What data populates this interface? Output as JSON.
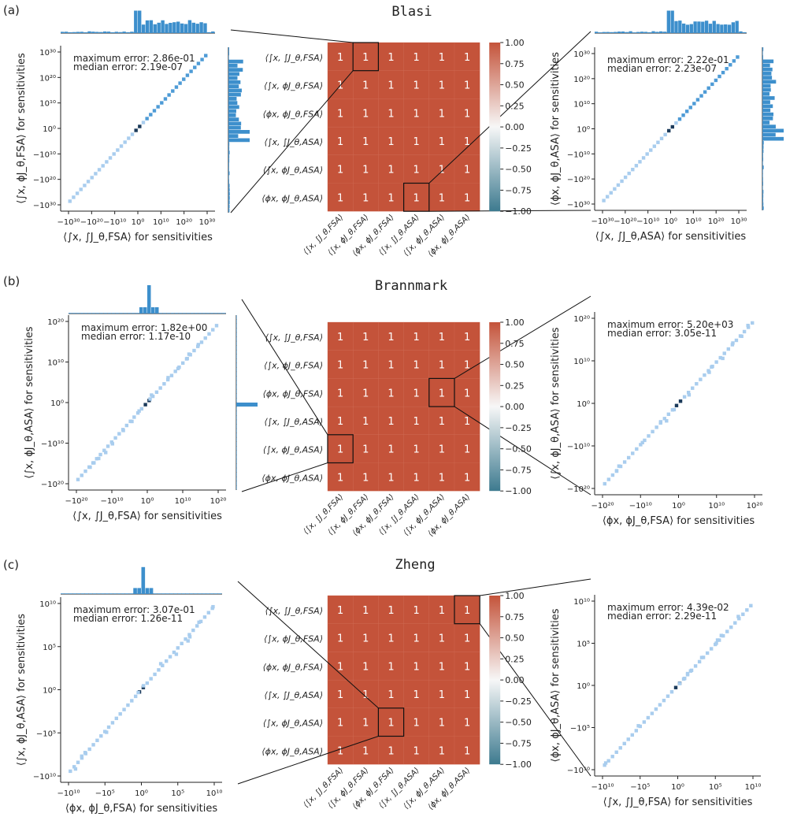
{
  "colors": {
    "heatmap_cell": "#c4533a",
    "scatter_light": "#a9cdee",
    "scatter_mid": "#4e9bd6",
    "scatter_dark": "#1b3a5a",
    "hist_bar": "#3d8fcc",
    "colorbar_low": "#3d7a8f",
    "colorbar_mid": "#f7f7f7",
    "colorbar_high": "#c4533a"
  },
  "panels": [
    {
      "label": "(a)",
      "title": "Blasi",
      "left": {
        "xlabel": "⟨∫x, ∫J_θ,FSA⟩ for sensitivities",
        "ylabel": "⟨∫x, ϕJ_θ,FSA⟩ for sensitivities",
        "xticks": [
          "−10³⁰",
          "−10²⁰",
          "−10¹⁰",
          "10⁰",
          "10¹⁰",
          "10²⁰",
          "10³⁰"
        ],
        "yticks": [
          "10³⁰",
          "10²⁰",
          "10¹⁰",
          "10⁰",
          "−10¹⁰",
          "−10²⁰",
          "−10³⁰"
        ],
        "max_error": "maximum error: 2.86e-01",
        "median_error": "median error: 2.19e-07"
      },
      "right": {
        "xlabel": "⟨∫x, ∫J_θ,ASA⟩ for sensitivities",
        "ylabel": "⟨ϕx, ϕJ_θ,ASA⟩ for sensitivities",
        "xticks": [
          "−10³⁰",
          "−10²⁰",
          "−10¹⁰",
          "10⁰",
          "10¹⁰",
          "10²⁰",
          "10³⁰"
        ],
        "yticks": [
          "10³⁰",
          "10²⁰",
          "10¹⁰",
          "10⁰",
          "−10¹⁰",
          "−10²⁰",
          "−10³⁰"
        ],
        "max_error": "maximum error: 2.22e-01",
        "median_error": "median error: 2.23e-07"
      }
    },
    {
      "label": "(b)",
      "title": "Brannmark",
      "left": {
        "xlabel": "⟨∫x, ∫J_θ,FSA⟩ for sensitivities",
        "ylabel": "⟨∫x, ϕJ_θ,ASA⟩ for sensitivities",
        "xticks": [
          "−10²⁰",
          "−10¹⁰",
          "10⁰",
          "10¹⁰",
          "10²⁰"
        ],
        "yticks": [
          "10²⁰",
          "10¹⁰",
          "10⁰",
          "−10¹⁰",
          "−10²⁰"
        ],
        "max_error": "maximum error: 1.82e+00",
        "median_error": "median error: 1.17e-10"
      },
      "right": {
        "xlabel": "⟨ϕx, ϕJ_θ,FSA⟩ for sensitivities",
        "ylabel": "⟨∫x, ϕJ_θ,ASA⟩ for sensitivities",
        "xticks": [
          "−10²⁰",
          "−10¹⁰",
          "10⁰",
          "10¹⁰",
          "10²⁰"
        ],
        "yticks": [
          "10²⁰",
          "10¹⁰",
          "10⁰",
          "−10¹⁰",
          "−10²⁰"
        ],
        "max_error": "maximum error: 5.20e+03",
        "median_error": "median error: 3.05e-11"
      }
    },
    {
      "label": "(c)",
      "title": "Zheng",
      "left": {
        "xlabel": "⟨ϕx, ϕJ_θ,FSA⟩ for sensitivities",
        "ylabel": "⟨∫x, ϕJ_θ,ASA⟩ for sensitivities",
        "xticks": [
          "−10¹⁰",
          "−10⁵",
          "10⁰",
          "10⁵",
          "10¹⁰"
        ],
        "yticks": [
          "10¹⁰",
          "10⁵",
          "10⁰",
          "−10⁵",
          "−10¹⁰"
        ],
        "max_error": "maximum error: 3.07e-01",
        "median_error": "median error: 1.26e-11"
      },
      "right": {
        "xlabel": "⟨∫x, ∫J_θ,FSA⟩ for sensitivities",
        "ylabel": "⟨ϕx, ϕJ_θ,ASA⟩ for sensitivities",
        "xticks": [
          "−10¹⁰",
          "−10⁵",
          "10⁰",
          "10⁵",
          "10¹⁰"
        ],
        "yticks": [
          "10¹⁰",
          "10⁵",
          "10⁰",
          "−10⁵",
          "−10¹⁰"
        ],
        "max_error": "maximum error: 4.39e-02",
        "median_error": "median error: 2.29e-11"
      }
    }
  ],
  "heatmap_labels": [
    "⟨∫x, ∫J_θ,FSA⟩",
    "⟨∫x, ϕJ_θ,FSA⟩",
    "⟨ϕx, ϕJ_θ,FSA⟩",
    "⟨∫x, ∫J_θ,ASA⟩",
    "⟨∫x, ϕJ_θ,ASA⟩",
    "⟨ϕx, ϕJ_θ,ASA⟩"
  ],
  "colorbar_ticks": [
    "1.00",
    "0.75",
    "0.50",
    "0.25",
    "0.00",
    "−0.25",
    "−0.50",
    "−0.75",
    "−1.00"
  ],
  "chart_data": [
    {
      "type": "heatmap",
      "title": "Blasi",
      "rows": [
        "⟨∫x, ∫J_θ,FSA⟩",
        "⟨∫x, ϕJ_θ,FSA⟩",
        "⟨ϕx, ϕJ_θ,FSA⟩",
        "⟨∫x, ∫J_θ,ASA⟩",
        "⟨∫x, ϕJ_θ,ASA⟩",
        "⟨ϕx, ϕJ_θ,ASA⟩"
      ],
      "columns": [
        "⟨∫x, ∫J_θ,FSA⟩",
        "⟨∫x, ϕJ_θ,FSA⟩",
        "⟨ϕx, ϕJ_θ,FSA⟩",
        "⟨∫x, ∫J_θ,ASA⟩",
        "⟨∫x, ϕJ_θ,ASA⟩",
        "⟨ϕx, ϕJ_θ,ASA⟩"
      ],
      "values": [
        [
          1,
          1,
          1,
          1,
          1,
          1
        ],
        [
          1,
          1,
          1,
          1,
          1,
          1
        ],
        [
          1,
          1,
          1,
          1,
          1,
          1
        ],
        [
          1,
          1,
          1,
          1,
          1,
          1
        ],
        [
          1,
          1,
          1,
          1,
          1,
          1
        ],
        [
          1,
          1,
          1,
          1,
          1,
          1
        ]
      ],
      "highlighted_cells": [
        [
          0,
          1
        ],
        [
          5,
          3
        ]
      ],
      "colorbar_range": [
        -1,
        1
      ]
    },
    {
      "type": "heatmap",
      "title": "Brannmark",
      "rows": [
        "⟨∫x, ∫J_θ,FSA⟩",
        "⟨∫x, ϕJ_θ,FSA⟩",
        "⟨ϕx, ϕJ_θ,FSA⟩",
        "⟨∫x, ∫J_θ,ASA⟩",
        "⟨∫x, ϕJ_θ,ASA⟩",
        "⟨ϕx, ϕJ_θ,ASA⟩"
      ],
      "columns": [
        "⟨∫x, ∫J_θ,FSA⟩",
        "⟨∫x, ϕJ_θ,FSA⟩",
        "⟨ϕx, ϕJ_θ,FSA⟩",
        "⟨∫x, ∫J_θ,ASA⟩",
        "⟨∫x, ϕJ_θ,ASA⟩",
        "⟨ϕx, ϕJ_θ,ASA⟩"
      ],
      "values": [
        [
          1,
          1,
          1,
          1,
          1,
          1
        ],
        [
          1,
          1,
          1,
          1,
          1,
          1
        ],
        [
          1,
          1,
          1,
          1,
          1,
          1
        ],
        [
          1,
          1,
          1,
          1,
          1,
          1
        ],
        [
          1,
          1,
          1,
          1,
          1,
          1
        ],
        [
          1,
          1,
          1,
          1,
          1,
          1
        ]
      ],
      "highlighted_cells": [
        [
          4,
          0
        ],
        [
          2,
          4
        ]
      ],
      "colorbar_range": [
        -1,
        1
      ]
    },
    {
      "type": "heatmap",
      "title": "Zheng",
      "rows": [
        "⟨∫x, ∫J_θ,FSA⟩",
        "⟨∫x, ϕJ_θ,FSA⟩",
        "⟨ϕx, ϕJ_θ,FSA⟩",
        "⟨∫x, ∫J_θ,ASA⟩",
        "⟨∫x, ϕJ_θ,ASA⟩",
        "⟨ϕx, ϕJ_θ,ASA⟩"
      ],
      "columns": [
        "⟨∫x, ∫J_θ,FSA⟩",
        "⟨∫x, ϕJ_θ,FSA⟩",
        "⟨ϕx, ϕJ_θ,FSA⟩",
        "⟨∫x, ∫J_θ,ASA⟩",
        "⟨∫x, ϕJ_θ,ASA⟩",
        "⟨ϕx, ϕJ_θ,ASA⟩"
      ],
      "values": [
        [
          1,
          1,
          1,
          1,
          1,
          1
        ],
        [
          1,
          1,
          1,
          1,
          1,
          1
        ],
        [
          1,
          1,
          1,
          1,
          1,
          1
        ],
        [
          1,
          1,
          1,
          1,
          1,
          1
        ],
        [
          1,
          1,
          1,
          1,
          1,
          1
        ],
        [
          1,
          1,
          1,
          1,
          1,
          1
        ]
      ],
      "highlighted_cells": [
        [
          4,
          2
        ],
        [
          0,
          5
        ]
      ],
      "colorbar_range": [
        -1,
        1
      ]
    },
    {
      "type": "scatter",
      "panel": "(a) left",
      "xlabel": "⟨∫x, ∫J_θ,FSA⟩ for sensitivities",
      "ylabel": "⟨∫x, ϕJ_θ,FSA⟩ for sensitivities",
      "scale": "symlog",
      "xlim": [
        -1e+30,
        1e+30
      ],
      "ylim": [
        -1e+30,
        1e+30
      ],
      "annotation": [
        "maximum error: 2.86e-01",
        "median error: 2.19e-07"
      ]
    },
    {
      "type": "scatter",
      "panel": "(a) right",
      "xlabel": "⟨∫x, ∫J_θ,ASA⟩ for sensitivities",
      "ylabel": "⟨ϕx, ϕJ_θ,ASA⟩ for sensitivities",
      "scale": "symlog",
      "xlim": [
        -1e+30,
        1e+30
      ],
      "ylim": [
        -1e+30,
        1e+30
      ],
      "annotation": [
        "maximum error: 2.22e-01",
        "median error: 2.23e-07"
      ]
    },
    {
      "type": "scatter",
      "panel": "(b) left",
      "xlabel": "⟨∫x, ∫J_θ,FSA⟩ for sensitivities",
      "ylabel": "⟨∫x, ϕJ_θ,ASA⟩ for sensitivities",
      "scale": "symlog",
      "xlim": [
        -1e+25,
        1e+25
      ],
      "ylim": [
        -1e+25,
        1e+25
      ],
      "annotation": [
        "maximum error: 1.82e+00",
        "median error: 1.17e-10"
      ]
    },
    {
      "type": "scatter",
      "panel": "(b) right",
      "xlabel": "⟨ϕx, ϕJ_θ,FSA⟩ for sensitivities",
      "ylabel": "⟨∫x, ϕJ_θ,ASA⟩ for sensitivities",
      "scale": "symlog",
      "xlim": [
        -1e+25,
        1e+25
      ],
      "ylim": [
        -1e+25,
        1e+25
      ],
      "annotation": [
        "maximum error: 5.20e+03",
        "median error: 3.05e-11"
      ]
    },
    {
      "type": "scatter",
      "panel": "(c) left",
      "xlabel": "⟨ϕx, ϕJ_θ,FSA⟩ for sensitivities",
      "ylabel": "⟨∫x, ϕJ_θ,ASA⟩ for sensitivities",
      "scale": "symlog",
      "xlim": [
        -100000000000.0,
        100000000000.0
      ],
      "ylim": [
        -100000000000.0,
        100000000000.0
      ],
      "annotation": [
        "maximum error: 3.07e-01",
        "median error: 1.26e-11"
      ]
    },
    {
      "type": "scatter",
      "panel": "(c) right",
      "xlabel": "⟨∫x, ∫J_θ,FSA⟩ for sensitivities",
      "ylabel": "⟨ϕx, ϕJ_θ,ASA⟩ for sensitivities",
      "scale": "symlog",
      "xlim": [
        -100000000000.0,
        100000000000.0
      ],
      "ylim": [
        -100000000000.0,
        100000000000.0
      ],
      "annotation": [
        "maximum error: 4.39e-02",
        "median error: 2.29e-11"
      ]
    }
  ]
}
